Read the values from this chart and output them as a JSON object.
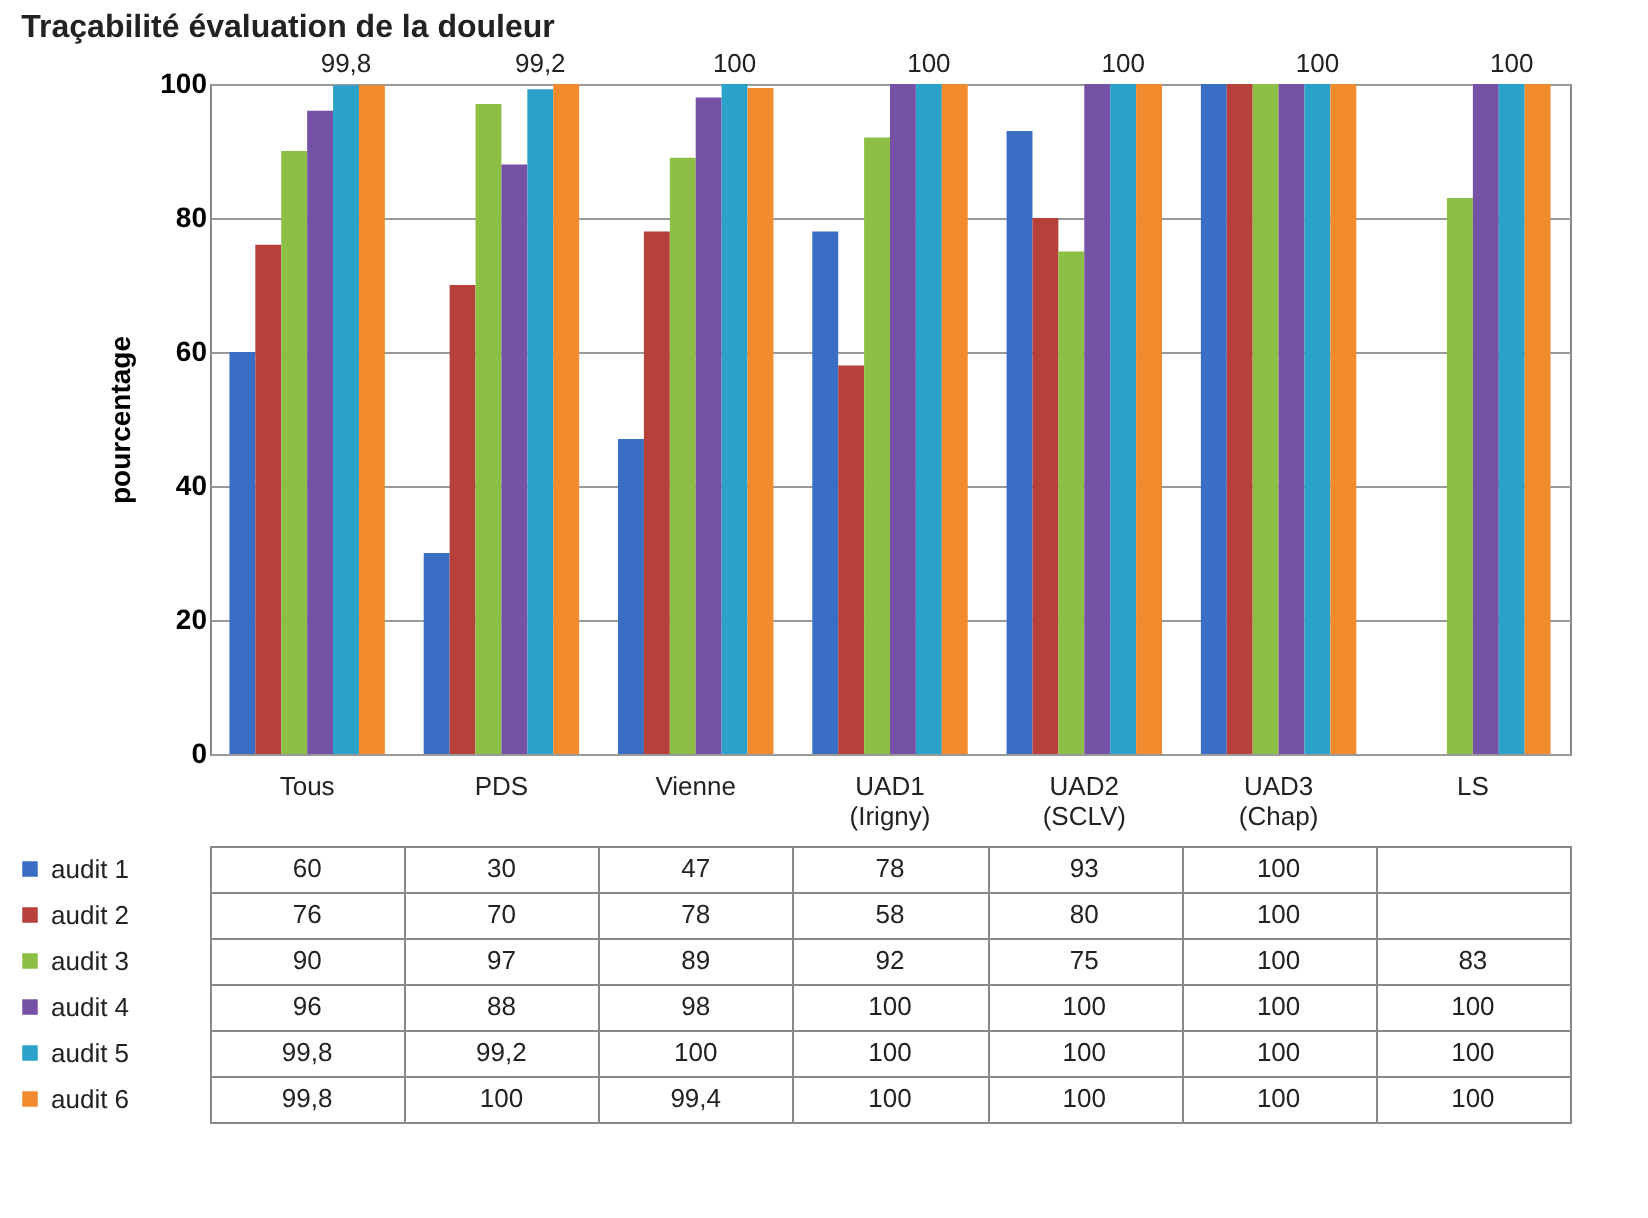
{
  "chart_data": {
    "type": "bar",
    "title": "Traçabilité évaluation de la douleur",
    "ylabel": "pourcentage",
    "categories": [
      "Tous",
      "PDS",
      "Vienne",
      "UAD1 (Irigny)",
      "UAD2 (SCLV)",
      "UAD3 (Chap)",
      "LS"
    ],
    "series": [
      {
        "name": "audit 1",
        "color": "#3a6ec4",
        "values": [
          60,
          30,
          47,
          78,
          93,
          100,
          null
        ],
        "value_labels": [
          "60",
          "30",
          "47",
          "78",
          "93",
          "100",
          null
        ]
      },
      {
        "name": "audit 2",
        "color": "#b8403a",
        "values": [
          76,
          70,
          78,
          58,
          80,
          100,
          null
        ],
        "value_labels": [
          "76",
          "70",
          "78",
          "58",
          "80",
          "100",
          null
        ]
      },
      {
        "name": "audit 3",
        "color": "#8dbf44",
        "values": [
          90,
          97,
          89,
          92,
          75,
          100,
          83
        ],
        "value_labels": [
          "90",
          "97",
          "89",
          "92",
          "75",
          "100",
          "83"
        ]
      },
      {
        "name": "audit 4",
        "color": "#7652a6",
        "values": [
          96,
          88,
          98,
          100,
          100,
          100,
          100
        ],
        "value_labels": [
          "96",
          "88",
          "98",
          "100",
          "100",
          "100",
          "100"
        ]
      },
      {
        "name": "audit 5",
        "color": "#2aa2c9",
        "values": [
          99.8,
          99.2,
          100,
          100,
          100,
          100,
          100
        ],
        "value_labels": [
          "99,8",
          "99,2",
          "100",
          "100",
          "100",
          "100",
          "100"
        ]
      },
      {
        "name": "audit 6",
        "color": "#f28a2e",
        "values": [
          99.8,
          100,
          99.4,
          100,
          100,
          100,
          100
        ],
        "value_labels": [
          "99,8",
          "100",
          "99,4",
          "100",
          "100",
          "100",
          "100"
        ]
      }
    ],
    "annotations": [
      "99,8",
      "99,2",
      "100",
      "100",
      "100",
      "100",
      "100"
    ],
    "legend": "bottom left",
    "ylim": [
      0,
      100
    ],
    "yticks": [
      0,
      20,
      40,
      60,
      80,
      100
    ],
    "grid": "y"
  }
}
